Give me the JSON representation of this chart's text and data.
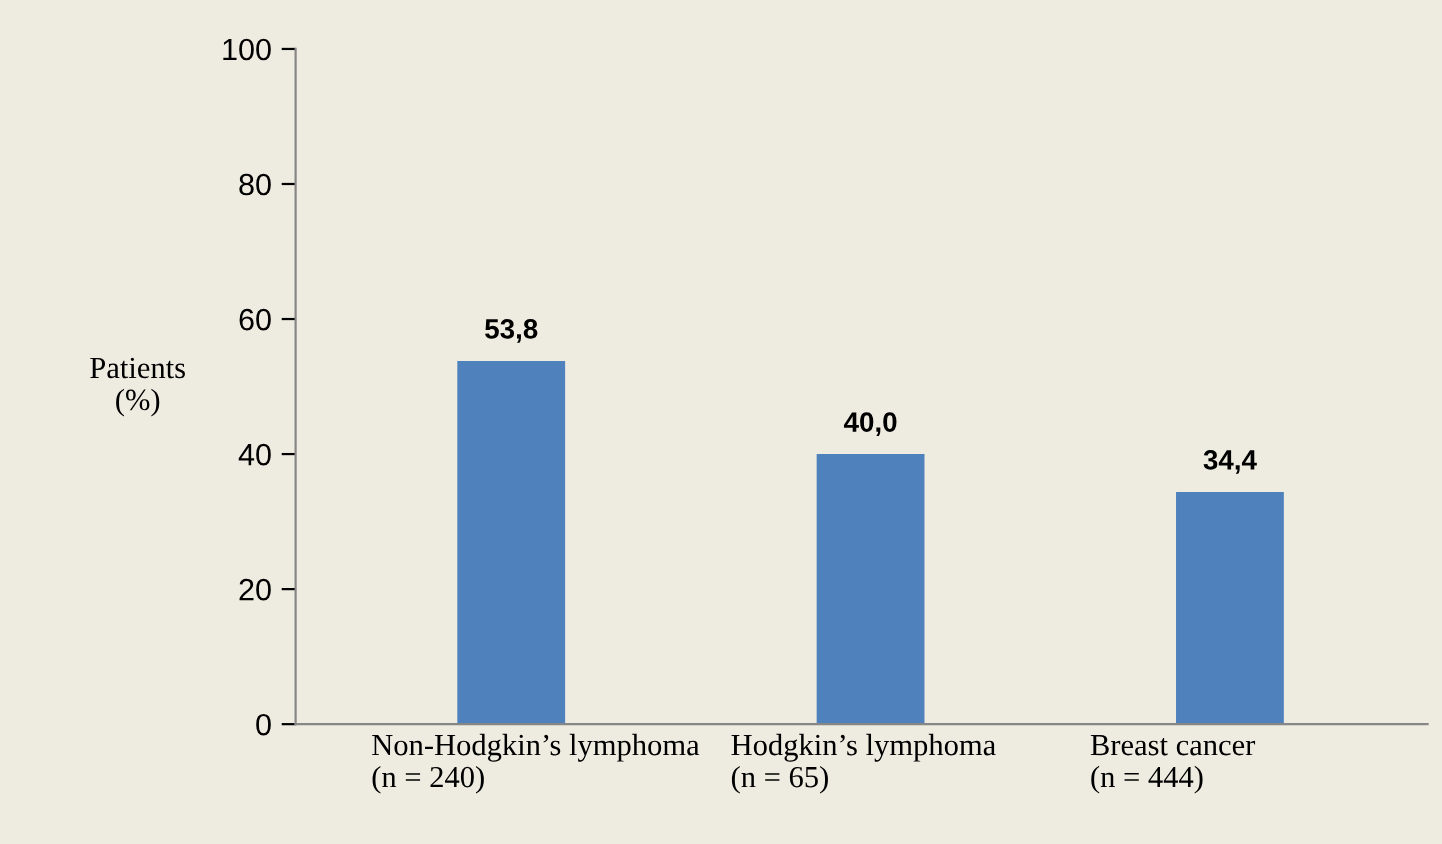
{
  "chart_data": {
    "type": "bar",
    "ylabel": "Patients\n(%)",
    "categories": [
      "Non-Hodgkin’s lymphoma\n(n = 240)",
      "Hodgkin’s lymphoma\n(n = 65)",
      "Breast cancer\n(n = 444)"
    ],
    "values": [
      53.8,
      40.0,
      34.4
    ],
    "value_labels": [
      "53,8",
      "40,0",
      "34,4"
    ],
    "color": "#4f81bd",
    "ylim": [
      0,
      100
    ],
    "yticks": [
      0,
      20,
      40,
      60,
      80,
      100
    ],
    "grid": false,
    "legend": false
  }
}
